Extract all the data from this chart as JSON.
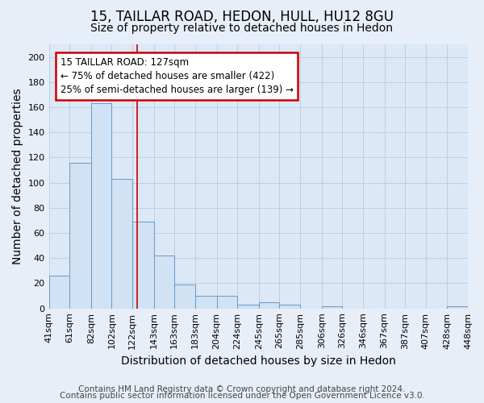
{
  "title_line1": "15, TAILLAR ROAD, HEDON, HULL, HU12 8GU",
  "title_line2": "Size of property relative to detached houses in Hedon",
  "xlabel": "Distribution of detached houses by size in Hedon",
  "ylabel": "Number of detached properties",
  "bar_edges": [
    41,
    61,
    82,
    102,
    122,
    143,
    163,
    183,
    204,
    224,
    245,
    265,
    285,
    306,
    326,
    346,
    367,
    387,
    407,
    428,
    448
  ],
  "bar_heights": [
    26,
    116,
    163,
    103,
    69,
    42,
    19,
    10,
    10,
    3,
    5,
    3,
    0,
    2,
    0,
    0,
    0,
    0,
    0,
    2
  ],
  "bar_color": "#d0e2f3",
  "bar_edgecolor": "#6699cc",
  "red_line_x": 127,
  "ylim": [
    0,
    210
  ],
  "yticks": [
    0,
    20,
    40,
    60,
    80,
    100,
    120,
    140,
    160,
    180,
    200
  ],
  "annotation_text": "15 TAILLAR ROAD: 127sqm\n← 75% of detached houses are smaller (422)\n25% of semi-detached houses are larger (139) →",
  "annotation_box_edgecolor": "#cc0000",
  "annotation_box_facecolor": "white",
  "footer_line1": "Contains HM Land Registry data © Crown copyright and database right 2024.",
  "footer_line2": "Contains public sector information licensed under the Open Government Licence v3.0.",
  "background_color": "#e8eef8",
  "plot_background_color": "#dce8f5",
  "grid_color": "#b8cce4",
  "title_fontsize": 12,
  "subtitle_fontsize": 10,
  "axis_label_fontsize": 10,
  "tick_fontsize": 8,
  "annotation_fontsize": 8.5,
  "footer_fontsize": 7.5
}
